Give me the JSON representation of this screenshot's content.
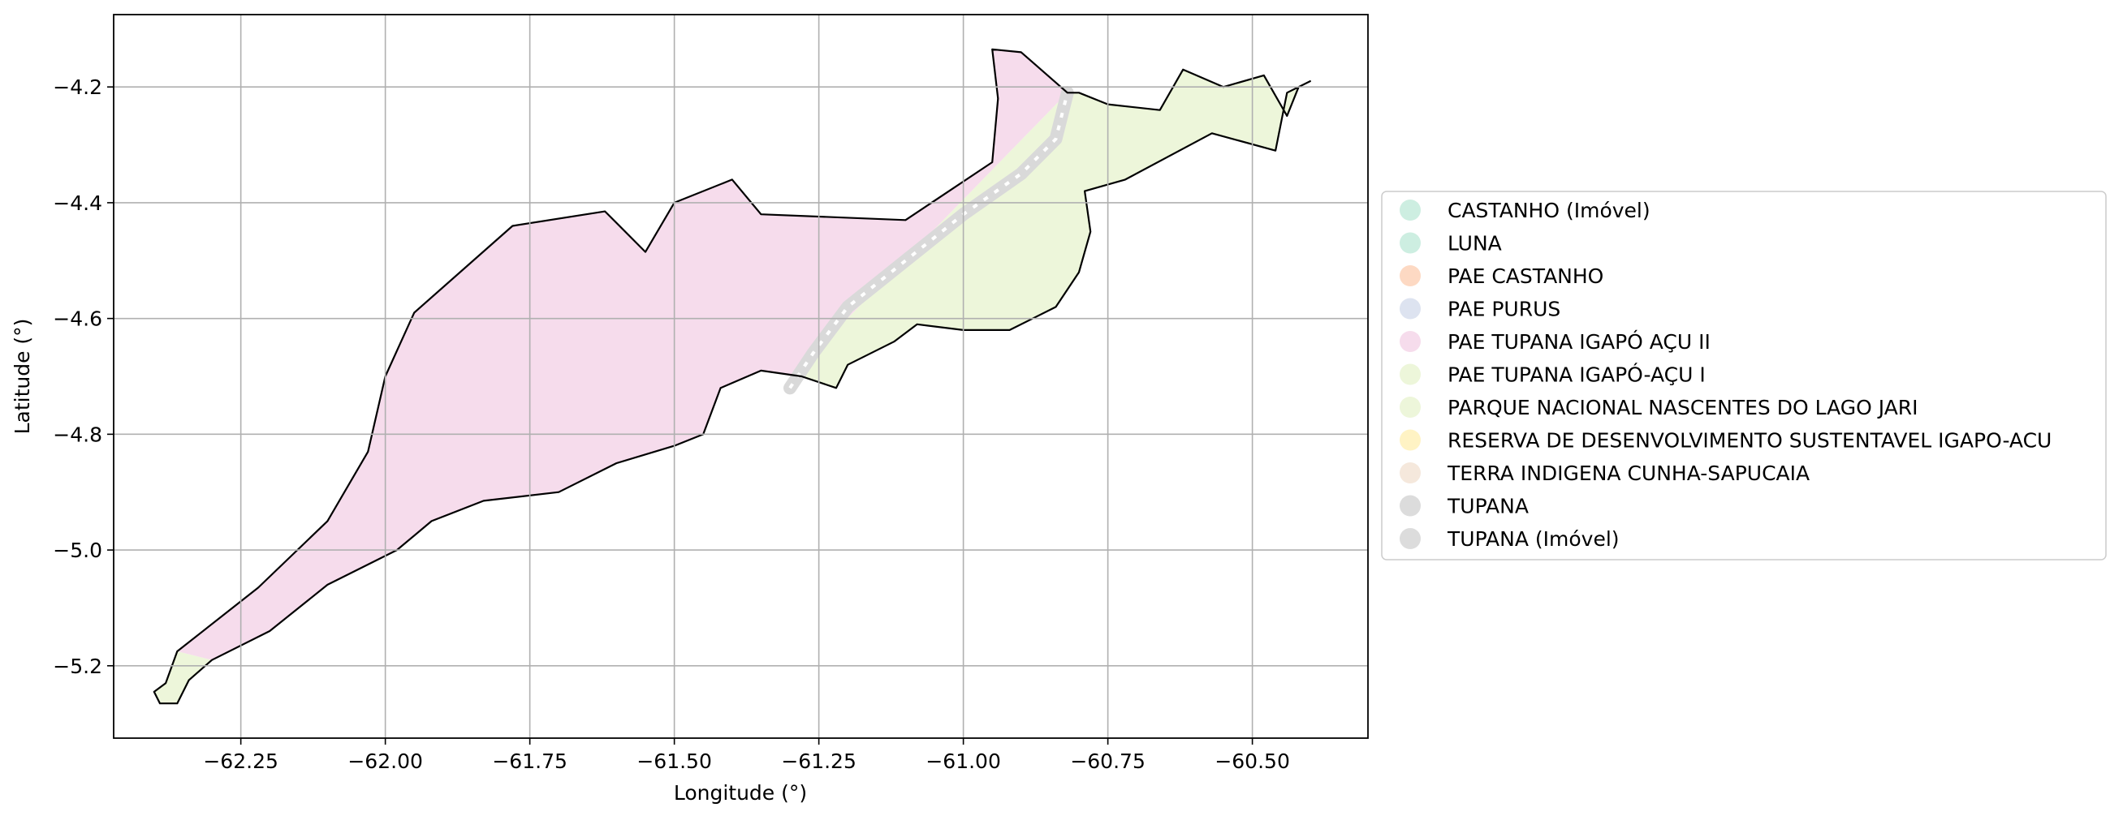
{
  "chart_data": {
    "type": "map",
    "xlabel": "Longitude (°)",
    "ylabel": "Latitude (°)",
    "xlim": [
      -62.47,
      -60.3
    ],
    "ylim": [
      -5.325,
      -4.075
    ],
    "xticks": [
      -62.25,
      -62.0,
      -61.75,
      -61.5,
      -61.25,
      -61.0,
      -60.75,
      -60.5
    ],
    "yticks": [
      -4.2,
      -4.4,
      -4.6,
      -4.8,
      -5.0,
      -5.2
    ],
    "xtick_labels": [
      "−62.25",
      "−62.00",
      "−61.75",
      "−61.50",
      "−61.25",
      "−61.00",
      "−60.75",
      "−60.50"
    ],
    "ytick_labels": [
      "−4.2",
      "−4.4",
      "−4.6",
      "−4.8",
      "−5.0",
      "−5.2"
    ],
    "grid": true,
    "legend_position": "right",
    "legend": [
      {
        "label": "CASTANHO (Imóvel)",
        "color": "#cdeee1"
      },
      {
        "label": "LUNA",
        "color": "#cdeee1"
      },
      {
        "label": "PAE CASTANHO",
        "color": "#fdd9c3"
      },
      {
        "label": "PAE PURUS",
        "color": "#dde3f0"
      },
      {
        "label": "PAE TUPANA IGAPÓ AÇU II",
        "color": "#f6dcec"
      },
      {
        "label": "PAE TUPANA IGAPÓ-AÇU I",
        "color": "#edf6da"
      },
      {
        "label": "PARQUE NACIONAL NASCENTES DO LAGO JARI",
        "color": "#edf6da"
      },
      {
        "label": "RESERVA DE DESENVOLVIMENTO SUSTENTAVEL IGAPO-ACU",
        "color": "#fff3c4"
      },
      {
        "label": "TERRA INDIGENA CUNHA-SAPUCAIA",
        "color": "#f5e8dc"
      },
      {
        "label": "TUPANA",
        "color": "#dcdcdc"
      },
      {
        "label": "TUPANA (Imóvel)",
        "color": "#dcdcdc"
      }
    ],
    "regions": [
      {
        "name": "PAE TUPANA IGAPÓ AÇU II",
        "color": "#f6dcec",
        "coords": [
          [
            -62.36,
            -5.175
          ],
          [
            -62.22,
            -5.065
          ],
          [
            -62.1,
            -4.95
          ],
          [
            -62.03,
            -4.83
          ],
          [
            -62.0,
            -4.7
          ],
          [
            -61.95,
            -4.59
          ],
          [
            -61.78,
            -4.44
          ],
          [
            -61.62,
            -4.415
          ],
          [
            -61.55,
            -4.485
          ],
          [
            -61.5,
            -4.4
          ],
          [
            -61.4,
            -4.36
          ],
          [
            -61.35,
            -4.42
          ],
          [
            -61.1,
            -4.43
          ],
          [
            -60.95,
            -4.33
          ],
          [
            -60.94,
            -4.22
          ],
          [
            -60.95,
            -4.135
          ],
          [
            -60.9,
            -4.14
          ],
          [
            -60.82,
            -4.21
          ],
          [
            -61.22,
            -4.62
          ],
          [
            -61.28,
            -4.7
          ],
          [
            -61.35,
            -4.69
          ],
          [
            -61.42,
            -4.72
          ],
          [
            -61.45,
            -4.8
          ],
          [
            -61.5,
            -4.82
          ],
          [
            -61.6,
            -4.85
          ],
          [
            -61.7,
            -4.9
          ],
          [
            -61.83,
            -4.915
          ],
          [
            -61.92,
            -4.95
          ],
          [
            -61.98,
            -5.0
          ],
          [
            -62.1,
            -5.06
          ],
          [
            -62.2,
            -5.14
          ],
          [
            -62.3,
            -5.19
          ],
          [
            -62.36,
            -5.175
          ]
        ]
      },
      {
        "name": "PARQUE NACIONAL NASCENTES DO LAGO JARI",
        "color": "#edf6da",
        "coords": [
          [
            -60.82,
            -4.21
          ],
          [
            -60.8,
            -4.21
          ],
          [
            -60.75,
            -4.23
          ],
          [
            -60.66,
            -4.24
          ],
          [
            -60.62,
            -4.17
          ],
          [
            -60.55,
            -4.2
          ],
          [
            -60.48,
            -4.18
          ],
          [
            -60.44,
            -4.25
          ],
          [
            -60.42,
            -4.2
          ],
          [
            -60.4,
            -4.19
          ],
          [
            -60.44,
            -4.21
          ],
          [
            -60.46,
            -4.31
          ],
          [
            -60.57,
            -4.28
          ],
          [
            -60.72,
            -4.36
          ],
          [
            -60.79,
            -4.38
          ],
          [
            -60.78,
            -4.45
          ],
          [
            -60.8,
            -4.52
          ],
          [
            -60.84,
            -4.58
          ],
          [
            -60.92,
            -4.62
          ],
          [
            -61.0,
            -4.62
          ],
          [
            -61.08,
            -4.61
          ],
          [
            -61.12,
            -4.64
          ],
          [
            -61.2,
            -4.68
          ],
          [
            -61.22,
            -4.72
          ],
          [
            -61.28,
            -4.7
          ],
          [
            -61.22,
            -4.62
          ],
          [
            -60.82,
            -4.21
          ]
        ]
      },
      {
        "name": "PAE TUPANA IGAPÓ-AÇU I",
        "color": "#edf6da",
        "coords": [
          [
            -62.36,
            -5.175
          ],
          [
            -62.3,
            -5.19
          ],
          [
            -62.34,
            -5.225
          ],
          [
            -62.36,
            -5.265
          ],
          [
            -62.39,
            -5.265
          ],
          [
            -62.4,
            -5.245
          ],
          [
            -62.38,
            -5.23
          ],
          [
            -62.36,
            -5.175
          ]
        ]
      }
    ],
    "outline": [
      [
        -62.36,
        -5.175
      ],
      [
        -62.22,
        -5.065
      ],
      [
        -62.1,
        -4.95
      ],
      [
        -62.03,
        -4.83
      ],
      [
        -62.0,
        -4.7
      ],
      [
        -61.95,
        -4.59
      ],
      [
        -61.78,
        -4.44
      ],
      [
        -61.62,
        -4.415
      ],
      [
        -61.55,
        -4.485
      ],
      [
        -61.5,
        -4.4
      ],
      [
        -61.4,
        -4.36
      ],
      [
        -61.35,
        -4.42
      ],
      [
        -61.1,
        -4.43
      ],
      [
        -60.95,
        -4.33
      ],
      [
        -60.94,
        -4.22
      ],
      [
        -60.95,
        -4.135
      ],
      [
        -60.9,
        -4.14
      ],
      [
        -60.82,
        -4.21
      ],
      [
        -60.8,
        -4.21
      ],
      [
        -60.75,
        -4.23
      ],
      [
        -60.66,
        -4.24
      ],
      [
        -60.62,
        -4.17
      ],
      [
        -60.55,
        -4.2
      ],
      [
        -60.48,
        -4.18
      ],
      [
        -60.44,
        -4.25
      ],
      [
        -60.42,
        -4.2
      ],
      [
        -60.4,
        -4.19
      ],
      [
        -60.44,
        -4.21
      ],
      [
        -60.46,
        -4.31
      ],
      [
        -60.57,
        -4.28
      ],
      [
        -60.72,
        -4.36
      ],
      [
        -60.79,
        -4.38
      ],
      [
        -60.78,
        -4.45
      ],
      [
        -60.8,
        -4.52
      ],
      [
        -60.84,
        -4.58
      ],
      [
        -60.92,
        -4.62
      ],
      [
        -61.0,
        -4.62
      ],
      [
        -61.08,
        -4.61
      ],
      [
        -61.12,
        -4.64
      ],
      [
        -61.2,
        -4.68
      ],
      [
        -61.22,
        -4.72
      ],
      [
        -61.28,
        -4.7
      ],
      [
        -61.35,
        -4.69
      ],
      [
        -61.42,
        -4.72
      ],
      [
        -61.45,
        -4.8
      ],
      [
        -61.5,
        -4.82
      ],
      [
        -61.6,
        -4.85
      ],
      [
        -61.7,
        -4.9
      ],
      [
        -61.83,
        -4.915
      ],
      [
        -61.92,
        -4.95
      ],
      [
        -61.98,
        -5.0
      ],
      [
        -62.1,
        -5.06
      ],
      [
        -62.2,
        -5.14
      ],
      [
        -62.3,
        -5.19
      ],
      [
        -62.34,
        -5.225
      ],
      [
        -62.36,
        -5.265
      ],
      [
        -62.39,
        -5.265
      ],
      [
        -62.4,
        -5.245
      ],
      [
        -62.38,
        -5.23
      ],
      [
        -62.36,
        -5.175
      ]
    ],
    "tupana_strip": [
      [
        -61.3,
        -4.72
      ],
      [
        -61.26,
        -4.66
      ],
      [
        -61.2,
        -4.58
      ],
      [
        -61.1,
        -4.5
      ],
      [
        -61.0,
        -4.42
      ],
      [
        -60.9,
        -4.35
      ],
      [
        -60.84,
        -4.29
      ],
      [
        -60.82,
        -4.21
      ]
    ]
  }
}
